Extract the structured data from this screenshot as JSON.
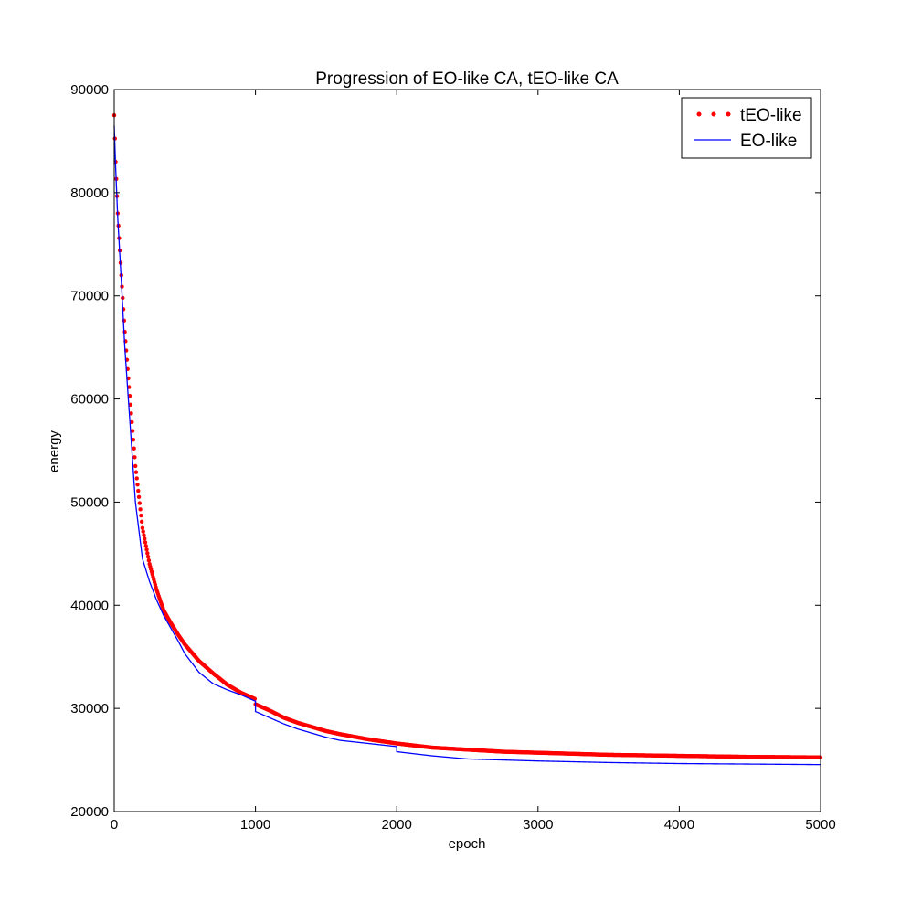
{
  "chart_data": {
    "type": "line",
    "title": "Progression of EO-like CA, tEO-like CA",
    "xlabel": "epoch",
    "ylabel": "energy",
    "xlim": [
      0,
      5000
    ],
    "ylim": [
      20000,
      90000
    ],
    "xticks": [
      "0",
      "1000",
      "2000",
      "3000",
      "4000",
      "5000"
    ],
    "yticks": [
      "20000",
      "30000",
      "40000",
      "50000",
      "60000",
      "70000",
      "80000",
      "90000"
    ],
    "grid": false,
    "legend_position": "top-right",
    "series": [
      {
        "name": "tEO-like",
        "style": "dots",
        "color": "#ff0000",
        "x": [
          0,
          10,
          25,
          50,
          75,
          100,
          150,
          200,
          250,
          300,
          350,
          400,
          450,
          500,
          600,
          700,
          800,
          900,
          999,
          1000,
          1100,
          1200,
          1300,
          1400,
          1500,
          1600,
          1800,
          2000,
          2250,
          2500,
          2750,
          3000,
          3500,
          4000,
          4500,
          5000
        ],
        "values": [
          87500,
          83000,
          78000,
          72000,
          66500,
          62000,
          53500,
          47500,
          44000,
          41500,
          39500,
          38300,
          37200,
          36200,
          34600,
          33400,
          32300,
          31500,
          30900,
          30400,
          29800,
          29100,
          28600,
          28200,
          27800,
          27500,
          27000,
          26600,
          26200,
          26000,
          25800,
          25700,
          25500,
          25400,
          25300,
          25250
        ]
      },
      {
        "name": "EO-like",
        "style": "line",
        "color": "#0000ff",
        "x": [
          0,
          10,
          25,
          50,
          75,
          100,
          150,
          200,
          250,
          300,
          350,
          400,
          450,
          500,
          600,
          700,
          800,
          900,
          999,
          1000,
          1100,
          1200,
          1300,
          1400,
          1500,
          1600,
          1800,
          1999,
          2000,
          2250,
          2500,
          2750,
          3000,
          3500,
          4000,
          4500,
          5000
        ],
        "values": [
          86500,
          82500,
          77500,
          71500,
          65000,
          60000,
          50000,
          44500,
          42300,
          40500,
          39000,
          37800,
          36600,
          35300,
          33500,
          32400,
          31800,
          31300,
          30700,
          29700,
          29100,
          28500,
          28000,
          27600,
          27200,
          26900,
          26600,
          26300,
          25800,
          25400,
          25100,
          25000,
          24900,
          24750,
          24650,
          24600,
          24550
        ]
      }
    ]
  }
}
